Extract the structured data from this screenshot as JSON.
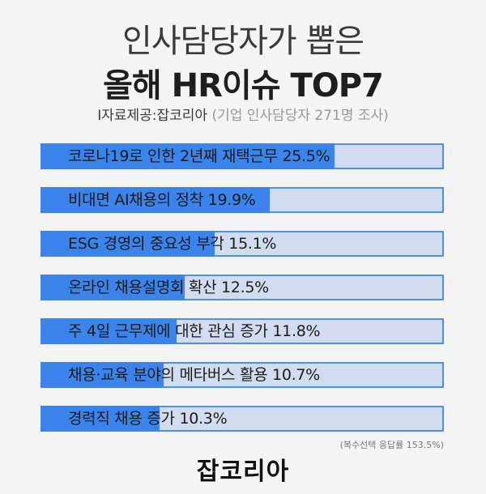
{
  "header": {
    "title_line1": "인사담당자가 뽑은",
    "title_line2": "올해 HR이슈 TOP7",
    "source_main": "I자료제공:잡코리아",
    "source_note": " (기업 인사담당자 271명 조사)"
  },
  "chart_data": {
    "type": "bar",
    "orientation": "horizontal",
    "xlim": [
      0,
      35
    ],
    "categories": [
      "코로나19로 인한 2년째 재택근무",
      "비대면 AI채용의 정착",
      "ESG 경영의 중요성 부각",
      "온라인 채용설명회 확산",
      "주 4일 근무제에 대한 관심 증가",
      "채용·교육 분야의 메타버스 활용",
      "경력직 채용 증가"
    ],
    "values": [
      25.5,
      19.9,
      15.1,
      12.5,
      11.8,
      10.7,
      10.3
    ],
    "labels": [
      "코로나19로 인한 2년째 재택근무 25.5%",
      "비대면 AI채용의 정착 19.9%",
      "ESG 경영의 중요성 부각 15.1%",
      "온라인 채용설명회 확산 12.5%",
      "주 4일 근무제에 대한 관심 증가 11.8%",
      "채용·교육 분야의 메타버스 활용 10.7%",
      "경력직 채용 증가 10.3%"
    ],
    "colors": {
      "fill": "#3b84ec",
      "track": "#d3dcef",
      "border": "#4a8fee"
    }
  },
  "footnote": "(복수선택 응답률 153.5%)",
  "logo": "잡코리아"
}
